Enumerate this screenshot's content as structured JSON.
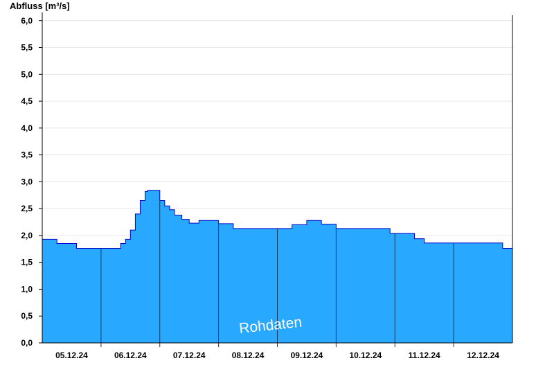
{
  "chart_data": {
    "type": "area",
    "ylabel": "Abfluss [m³/s]",
    "ylim": [
      0,
      6.1
    ],
    "yticks": [
      0,
      0.5,
      1.0,
      1.5,
      2.0,
      2.5,
      3.0,
      3.5,
      4.0,
      4.5,
      5.0,
      5.5,
      6.0
    ],
    "ytick_labels": [
      "0,0",
      "0,5",
      "1,0",
      "1,5",
      "2,0",
      "2,5",
      "3,0",
      "3,5",
      "4,0",
      "4,5",
      "5,0",
      "5,5",
      "6,0"
    ],
    "xlim": [
      "2024-12-05T00:00",
      "2024-12-13T00:00"
    ],
    "xtick_labels": [
      "05.12.24",
      "06.12.24",
      "07.12.24",
      "08.12.24",
      "09.12.24",
      "10.12.24",
      "11.12.24",
      "12.12.24"
    ],
    "fill_color": "#29a8ff",
    "line_color": "#0000cc",
    "grid": true,
    "annotation": "Rohdaten",
    "series": [
      {
        "x": [
          "2024-12-05T00:00",
          "2024-12-05T05:00",
          "2024-12-05T06:00",
          "2024-12-05T12:00",
          "2024-12-05T14:00",
          "2024-12-05T18:00",
          "2024-12-06T00:00",
          "2024-12-06T06:00",
          "2024-12-06T08:00",
          "2024-12-06T10:00",
          "2024-12-06T12:00",
          "2024-12-06T14:00",
          "2024-12-06T16:00",
          "2024-12-06T18:00",
          "2024-12-06T19:00",
          "2024-12-06T21:00",
          "2024-12-07T00:00",
          "2024-12-07T02:00",
          "2024-12-07T04:00",
          "2024-12-07T06:00",
          "2024-12-07T09:00",
          "2024-12-07T12:00",
          "2024-12-07T16:00",
          "2024-12-07T20:00",
          "2024-12-08T00:00",
          "2024-12-08T06:00",
          "2024-12-08T12:00",
          "2024-12-08T18:00",
          "2024-12-09T00:00",
          "2024-12-09T06:00",
          "2024-12-09T12:00",
          "2024-12-09T18:00",
          "2024-12-10T00:00",
          "2024-12-10T10:00",
          "2024-12-10T12:00",
          "2024-12-10T22:00",
          "2024-12-11T00:00",
          "2024-12-11T08:00",
          "2024-12-11T12:00",
          "2024-12-12T00:00",
          "2024-12-12T12:00",
          "2024-12-12T20:00",
          "2024-12-12T21:00",
          "2024-12-13T00:00"
        ],
        "y": [
          1.93,
          1.93,
          1.85,
          1.85,
          1.76,
          1.76,
          1.76,
          1.76,
          1.85,
          1.93,
          2.1,
          2.4,
          2.65,
          2.82,
          2.84,
          2.84,
          2.65,
          2.55,
          2.48,
          2.38,
          2.3,
          2.23,
          2.28,
          2.28,
          2.22,
          2.13,
          2.13,
          2.13,
          2.13,
          2.2,
          2.28,
          2.21,
          2.13,
          2.13,
          2.13,
          2.04,
          2.04,
          1.94,
          1.86,
          1.86,
          1.86,
          1.76,
          1.76,
          1.76
        ]
      }
    ]
  }
}
